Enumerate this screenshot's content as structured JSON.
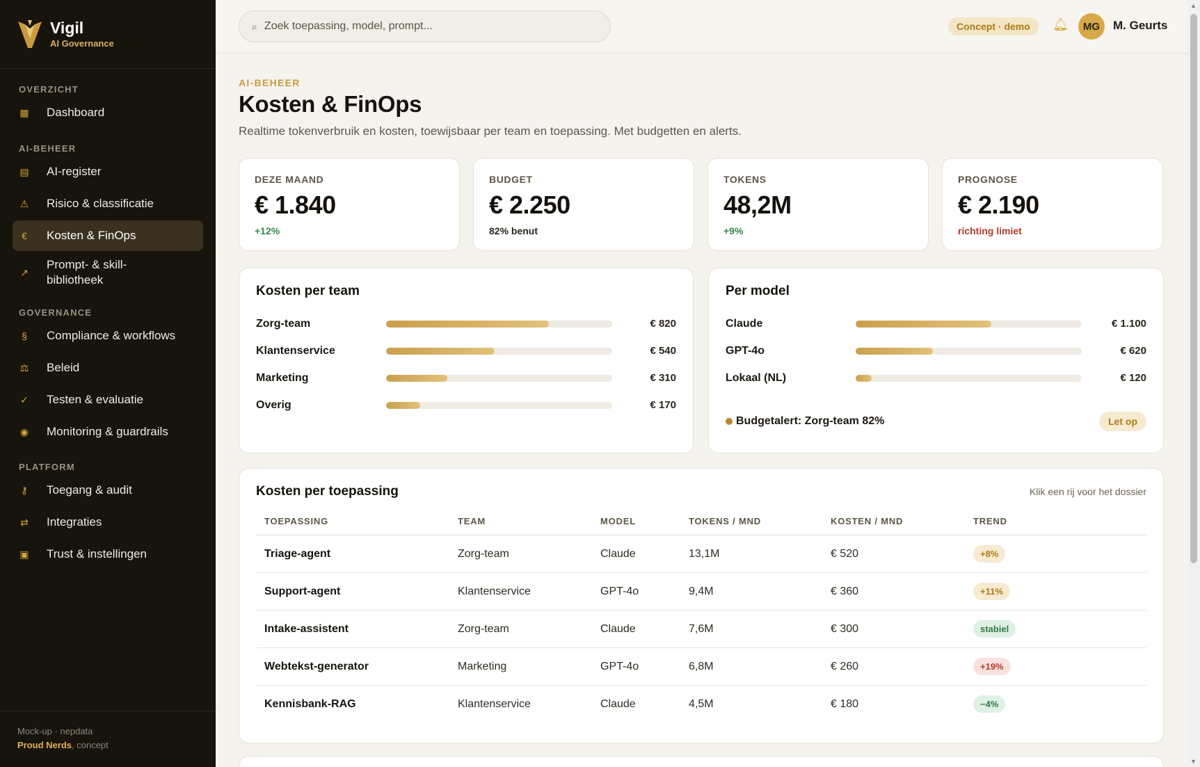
{
  "brand": {
    "name": "Vigil",
    "subtitle": "AI Governance"
  },
  "sidebar": {
    "sections": [
      {
        "title": "OVERZICHT",
        "items": [
          {
            "label": "Dashboard",
            "icon": "grid-icon"
          }
        ]
      },
      {
        "title": "AI-BEHEER",
        "items": [
          {
            "label": "AI-register",
            "icon": "register-icon"
          },
          {
            "label": "Risico & classificatie",
            "icon": "warning-icon"
          },
          {
            "label": "Kosten & FinOps",
            "icon": "euro-icon",
            "active": true
          },
          {
            "label": "Prompt- & skill-bibliotheek",
            "icon": "arrow-icon"
          }
        ]
      },
      {
        "title": "GOVERNANCE",
        "items": [
          {
            "label": "Compliance & workflows",
            "icon": "section-icon"
          },
          {
            "label": "Beleid",
            "icon": "scale-icon"
          },
          {
            "label": "Testen & evaluatie",
            "icon": "check-icon"
          },
          {
            "label": "Monitoring & guardrails",
            "icon": "target-icon"
          }
        ]
      },
      {
        "title": "PLATFORM",
        "items": [
          {
            "label": "Toegang & audit",
            "icon": "key-icon"
          },
          {
            "label": "Integraties",
            "icon": "swap-icon"
          },
          {
            "label": "Trust & instellingen",
            "icon": "box-icon"
          }
        ]
      }
    ],
    "footer": {
      "line1": "Mock-up · nepdata",
      "brand": "Proud Nerds",
      "suffix": ", concept"
    }
  },
  "topbar": {
    "search_placeholder": "Zoek toepassing, model, prompt...",
    "demo_badge": "Concept · demo",
    "avatar_initials": "MG",
    "username": "M. Geurts"
  },
  "page": {
    "eyebrow": "AI-BEHEER",
    "title": "Kosten & FinOps",
    "subtitle": "Realtime tokenverbruik en kosten, toewijsbaar per team en toepassing. Met budgetten en alerts."
  },
  "kpis": [
    {
      "label": "DEZE MAAND",
      "value": "€ 1.840",
      "note": "+12%",
      "tone": "up"
    },
    {
      "label": "BUDGET",
      "value": "€ 2.250",
      "note": "82% benut",
      "tone": "neutral"
    },
    {
      "label": "TOKENS",
      "value": "48,2M",
      "note": "+9%",
      "tone": "up"
    },
    {
      "label": "PROGNOSE",
      "value": "€ 2.190",
      "note": "richting limiet",
      "tone": "warn"
    }
  ],
  "team_costs": {
    "title": "Kosten per team",
    "rows": [
      {
        "label": "Zorg-team",
        "value": "€ 820",
        "fraction": 0.72
      },
      {
        "label": "Klantenservice",
        "value": "€ 540",
        "fraction": 0.48
      },
      {
        "label": "Marketing",
        "value": "€ 310",
        "fraction": 0.27
      },
      {
        "label": "Overig",
        "value": "€ 170",
        "fraction": 0.15
      }
    ]
  },
  "model_costs": {
    "title": "Per model",
    "rows": [
      {
        "label": "Claude",
        "value": "€ 1.100",
        "fraction": 0.6
      },
      {
        "label": "GPT-4o",
        "value": "€ 620",
        "fraction": 0.34
      },
      {
        "label": "Lokaal (NL)",
        "value": "€ 120",
        "fraction": 0.07
      }
    ],
    "alert_text": "Budgetalert: Zorg-team 82%",
    "alert_badge": "Let op"
  },
  "apps_table": {
    "title": "Kosten per toepassing",
    "hint": "Klik een rij voor het dossier",
    "columns": [
      "TOEPASSING",
      "TEAM",
      "MODEL",
      "TOKENS / MND",
      "KOSTEN / MND",
      "TREND"
    ],
    "rows": [
      {
        "app": "Triage-agent",
        "team": "Zorg-team",
        "model": "Claude",
        "tokens": "13,1M",
        "cost": "€ 520",
        "trend": "+8%",
        "trend_type": "up"
      },
      {
        "app": "Support-agent",
        "team": "Klantenservice",
        "model": "GPT-4o",
        "tokens": "9,4M",
        "cost": "€ 360",
        "trend": "+11%",
        "trend_type": "up"
      },
      {
        "app": "Intake-assistent",
        "team": "Zorg-team",
        "model": "Claude",
        "tokens": "7,6M",
        "cost": "€ 300",
        "trend": "stabiel",
        "trend_type": "flat"
      },
      {
        "app": "Webtekst-generator",
        "team": "Marketing",
        "model": "GPT-4o",
        "tokens": "6,8M",
        "cost": "€ 260",
        "trend": "+19%",
        "trend_type": "hot"
      },
      {
        "app": "Kennisbank-RAG",
        "team": "Klantenservice",
        "model": "Claude",
        "tokens": "4,5M",
        "cost": "€ 180",
        "trend": "−4%",
        "trend_type": "down"
      }
    ]
  },
  "colors": {
    "accent": "#d6a63c",
    "sidebar_bg": "#17130d",
    "page_bg": "#f5f3ee",
    "positive": "#2f8a4a",
    "warning": "#b43a2a"
  }
}
